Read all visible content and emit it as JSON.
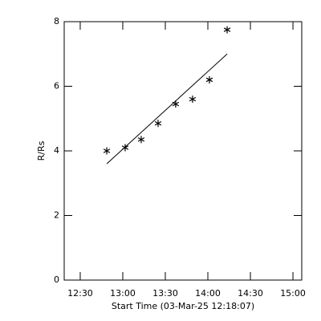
{
  "chart_data": {
    "type": "scatter",
    "x_label": "Start Time (03-Mar-25 12:18:07)",
    "y_label": "R/Rs",
    "x": [
      48.7,
      61.7,
      73.0,
      84.9,
      97.3,
      109.2,
      121.1,
      133.6
    ],
    "values": [
      4.0,
      4.1,
      4.35,
      4.85,
      5.45,
      5.6,
      6.2,
      7.75
    ],
    "fit_line": {
      "x": [
        48.7,
        133.6
      ],
      "values": [
        3.6,
        7.0
      ]
    },
    "color": "#000000",
    "xlim": [
      18.7,
      186.2
    ],
    "xticks": [
      {
        "value": 30,
        "label": "12:30"
      },
      {
        "value": 60,
        "label": "13:00"
      },
      {
        "value": 90,
        "label": "13:30"
      },
      {
        "value": 120,
        "label": "14:00"
      },
      {
        "value": 150,
        "label": "14:30"
      },
      {
        "value": 180,
        "label": "15:00"
      }
    ],
    "ylim": [
      0,
      8
    ],
    "yticks": [
      0,
      2,
      4,
      6,
      8
    ]
  }
}
